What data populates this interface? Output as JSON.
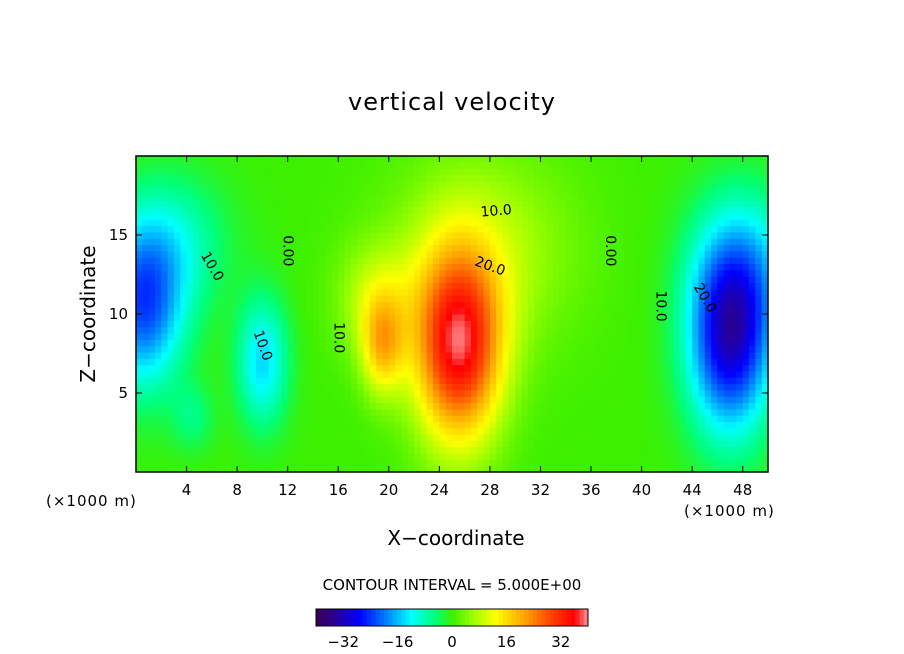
{
  "chart_data": {
    "type": "heatmap",
    "title": "vertical velocity",
    "xlabel": "X−coordinate",
    "ylabel": "Z−coordinate",
    "x_unit_left": "(×1000 m)",
    "x_unit_right": "(×1000 m)",
    "xlim": [
      0,
      50
    ],
    "ylim": [
      0,
      20
    ],
    "xticks": [
      4,
      8,
      12,
      16,
      20,
      24,
      28,
      32,
      36,
      40,
      44,
      48
    ],
    "yticks": [
      5,
      10,
      15
    ],
    "contour_interval_text": "CONTOUR INTERVAL = 5.000E+00",
    "colorbar": {
      "range": [
        -40,
        40
      ],
      "ticks": [
        -32,
        -16,
        0,
        16,
        32
      ],
      "tick_labels": [
        "−32",
        "−16",
        "0",
        "16",
        "32"
      ]
    },
    "features": [
      {
        "sign": "positive",
        "peak": 35,
        "x": 25.5,
        "z": 8.0
      },
      {
        "sign": "positive",
        "peak": 15,
        "x": 19.5,
        "z": 8.0
      },
      {
        "sign": "negative",
        "peak": -30,
        "x": 47.0,
        "z": 8.5
      },
      {
        "sign": "negative",
        "peak": -22,
        "x": 0.5,
        "z": 10.5
      },
      {
        "sign": "negative",
        "peak": -14,
        "x": 10.0,
        "z": 7.0
      }
    ],
    "contour_labels": [
      {
        "text": "10.0",
        "x": 28.5,
        "z": 16.5,
        "angle": -5
      },
      {
        "text": "20.0",
        "x": 28.0,
        "z": 13.0,
        "angle": 20
      },
      {
        "text": "0.00",
        "x": 37.5,
        "z": 14.0,
        "angle": 90
      },
      {
        "text": "0.00",
        "x": 12.0,
        "z": 14.0,
        "angle": 90
      },
      {
        "text": "10.0",
        "x": 16.0,
        "z": 8.5,
        "angle": 90
      },
      {
        "text": "10.0",
        "x": 10.0,
        "z": 8.0,
        "angle": 70
      },
      {
        "text": "10.0",
        "x": 6.0,
        "z": 13.0,
        "angle": 60
      },
      {
        "text": "10.0",
        "x": 41.5,
        "z": 10.5,
        "angle": 90
      },
      {
        "text": "20.0",
        "x": 45.0,
        "z": 11.0,
        "angle": 60
      }
    ]
  }
}
